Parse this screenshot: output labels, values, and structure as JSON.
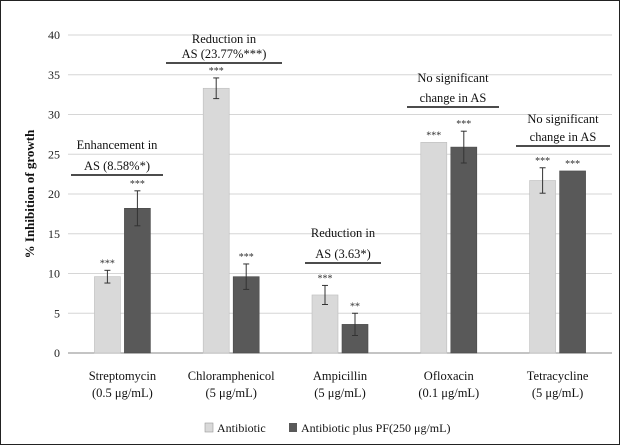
{
  "chart_data": {
    "type": "bar",
    "title": "",
    "xlabel": "",
    "ylabel": "% Inhibition of growth",
    "ylim": [
      0,
      40
    ],
    "yticks": [
      0,
      5,
      10,
      15,
      20,
      25,
      30,
      35,
      40
    ],
    "grid": true,
    "legend_placement": "bottom",
    "categories": [
      [
        "Streptomycin",
        "(0.5 μg/mL)"
      ],
      [
        "Chloramphenicol",
        "(5 μg/mL)"
      ],
      [
        "Ampicillin",
        "(5 μg/mL)"
      ],
      [
        "Ofloxacin",
        "(0.1 μg/mL)"
      ],
      [
        "Tetracycline",
        "(5 μg/mL)"
      ]
    ],
    "series": [
      {
        "name": "Antibiotic",
        "color": "#d9d9d9",
        "values": [
          9.6,
          33.3,
          7.3,
          26.5,
          21.7
        ],
        "errors": [
          0.8,
          1.3,
          1.2,
          0.0,
          1.6
        ],
        "significance": [
          "***",
          "***",
          "***",
          "***",
          "***"
        ]
      },
      {
        "name": "Antibiotic plus PF(250 μg/mL)",
        "color": "#595959",
        "values": [
          18.2,
          9.6,
          3.6,
          25.9,
          22.9
        ],
        "errors": [
          2.2,
          1.6,
          1.4,
          2.0,
          0.0
        ],
        "significance": [
          "***",
          "***",
          "**",
          "***",
          "***"
        ]
      }
    ],
    "annotations": [
      {
        "category": 0,
        "lines": [
          "Enhancement in",
          "AS (8.58%*)"
        ]
      },
      {
        "category": 1,
        "lines": [
          "Reduction in",
          "AS (23.77%***)"
        ]
      },
      {
        "category": 2,
        "lines": [
          "Reduction in",
          "AS (3.63*)"
        ]
      },
      {
        "category": 3,
        "lines": [
          "No significant",
          "change in AS"
        ]
      },
      {
        "category": 4,
        "lines": [
          "No significant",
          "change in AS"
        ]
      }
    ]
  }
}
